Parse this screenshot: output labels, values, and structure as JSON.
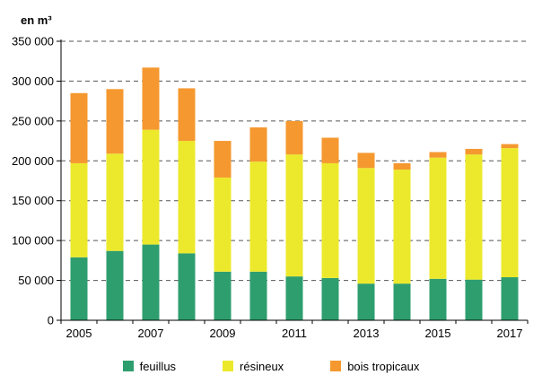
{
  "chart_data": {
    "type": "bar",
    "stacked": true,
    "unit_label": "en m³",
    "x": [
      2005,
      2006,
      2007,
      2008,
      2009,
      2010,
      2011,
      2012,
      2013,
      2014,
      2015,
      2016,
      2017
    ],
    "x_tick_labels": [
      "2005",
      "2007",
      "2009",
      "2011",
      "2013",
      "2015",
      "2017"
    ],
    "y_tick_labels": [
      "0",
      "50 000",
      "100 000",
      "150 000",
      "200 000",
      "250 000",
      "300 000",
      "350 000"
    ],
    "ylim": [
      0,
      350000
    ],
    "grid": "horizontal dashed",
    "legend_position": "bottom",
    "series": [
      {
        "name": "feuillus",
        "color": "#2e9e6e",
        "values": [
          79000,
          87000,
          95000,
          84000,
          61000,
          61000,
          55000,
          53000,
          46000,
          46000,
          52000,
          51000,
          54000
        ]
      },
      {
        "name": "résineux",
        "color": "#ece92c",
        "values": [
          118000,
          122000,
          144000,
          141000,
          118000,
          138000,
          153000,
          144000,
          145000,
          143000,
          152000,
          157000,
          162000
        ]
      },
      {
        "name": "bois tropicaux",
        "color": "#f5982f",
        "values": [
          88000,
          81000,
          78000,
          66000,
          46000,
          43000,
          42000,
          32000,
          19000,
          8000,
          7000,
          7000,
          5000
        ]
      }
    ]
  }
}
